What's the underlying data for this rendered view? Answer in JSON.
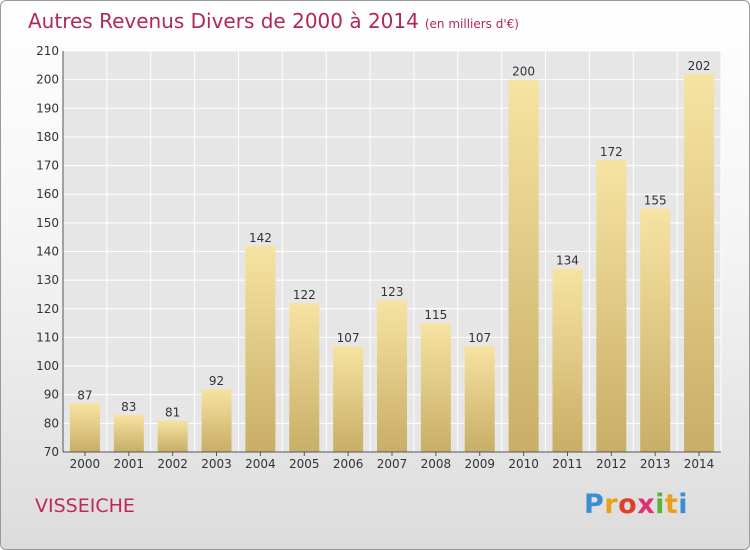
{
  "title": "Autres Revenus Divers de 2000 à 2014",
  "unit": "(en milliers d'€)",
  "commune": "VISSEICHE",
  "logo": {
    "text": "Proxiti",
    "colors": [
      "#3a8fd0",
      "#e8a21a",
      "#e0402a",
      "#e03070",
      "#5ab23a",
      "#e8a21a",
      "#3a8fd0"
    ]
  },
  "colors": {
    "bar_top": "#f7e3a2",
    "bar_bottom": "#c8ae66",
    "title": "#b0285a",
    "grid": "#ffffff"
  },
  "chart_data": {
    "type": "bar",
    "categories": [
      "2000",
      "2001",
      "2002",
      "2003",
      "2004",
      "2005",
      "2006",
      "2007",
      "2008",
      "2009",
      "2010",
      "2011",
      "2012",
      "2013",
      "2014"
    ],
    "values": [
      87,
      83,
      81,
      92,
      142,
      122,
      107,
      123,
      115,
      107,
      200,
      134,
      172,
      155,
      202
    ],
    "ylim": [
      70,
      210
    ],
    "yticks": [
      70,
      80,
      90,
      100,
      110,
      120,
      130,
      140,
      150,
      160,
      170,
      180,
      190,
      200,
      210
    ],
    "grid": true
  }
}
